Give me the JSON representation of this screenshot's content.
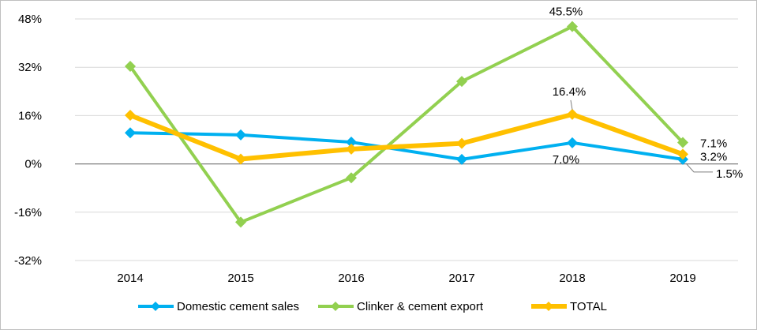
{
  "chart_data": {
    "type": "line",
    "categories": [
      "2014",
      "2015",
      "2016",
      "2017",
      "2018",
      "2019"
    ],
    "series": [
      {
        "name": "Domestic cement sales",
        "values": [
          10.3,
          9.6,
          7.2,
          1.5,
          7.0,
          1.5
        ],
        "color": "#00b0f0"
      },
      {
        "name": "Clinker & cement export",
        "values": [
          32.3,
          -19.3,
          -4.6,
          27.3,
          45.5,
          7.1
        ],
        "color": "#92d050"
      },
      {
        "name": "TOTAL",
        "values": [
          16.1,
          1.6,
          4.9,
          6.8,
          16.4,
          3.2
        ],
        "color": "#ffc000"
      }
    ],
    "y_ticks": [
      "48%",
      "32%",
      "16%",
      "0%",
      "-16%",
      "-32%"
    ],
    "y_tick_values": [
      48,
      32,
      16,
      0,
      -16,
      -32
    ],
    "ylim": [
      -32,
      48
    ],
    "grid": true,
    "legend_position": "bottom",
    "data_labels": [
      {
        "text": "45.5%",
        "series": 1,
        "point": 4
      },
      {
        "text": "16.4%",
        "series": 2,
        "point": 4
      },
      {
        "text": "7.0%",
        "series": 0,
        "point": 4
      },
      {
        "text": "7.1%",
        "series": 1,
        "point": 5
      },
      {
        "text": "3.2%",
        "series": 2,
        "point": 5
      },
      {
        "text": "1.5%",
        "series": 0,
        "point": 5
      }
    ]
  }
}
